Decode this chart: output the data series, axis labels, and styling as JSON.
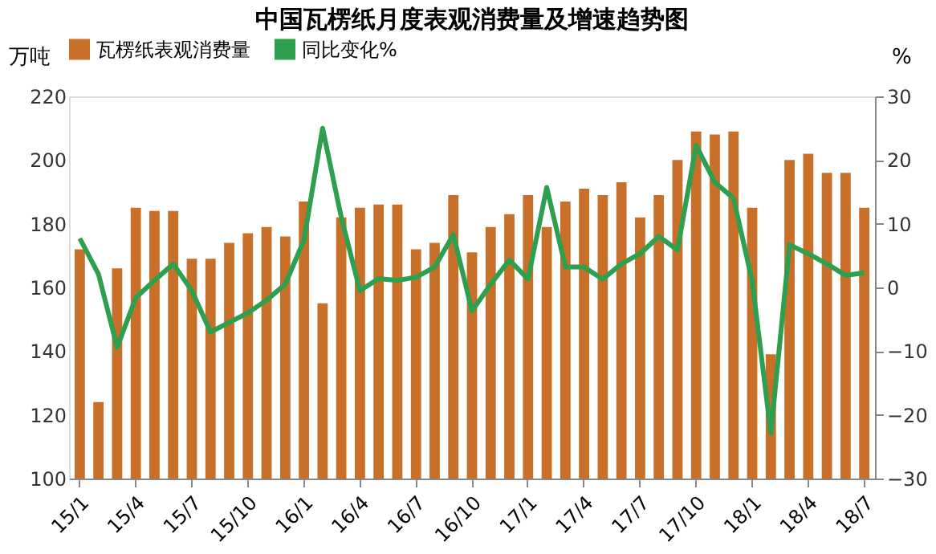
{
  "chart_data": {
    "type": "bar",
    "title": "中国瓦楞纸月度表观消费量及增速趋势图",
    "categories": [
      "15/1",
      null,
      null,
      "15/4",
      null,
      null,
      "15/7",
      null,
      null,
      "15/10",
      null,
      null,
      "16/1",
      null,
      null,
      "16/4",
      null,
      null,
      "16/7",
      null,
      null,
      "16/10",
      null,
      null,
      "17/1",
      null,
      null,
      "17/4",
      null,
      null,
      "17/7",
      null,
      null,
      "17/10",
      null,
      null,
      "18/1",
      null,
      null,
      "18/4",
      null,
      null,
      "18/7"
    ],
    "series": [
      {
        "name": "瓦楞纸表观消费量",
        "color": "#c8702a",
        "values": [
          172,
          124,
          166,
          185,
          184,
          184,
          169,
          169,
          174,
          177,
          179,
          176,
          187,
          155,
          182,
          185,
          186,
          186,
          172,
          174,
          189,
          171,
          179,
          183,
          189,
          179,
          187,
          191,
          189,
          193,
          182,
          189,
          200,
          209,
          208,
          209,
          185,
          139,
          200,
          202,
          196,
          196,
          185
        ]
      },
      {
        "name": "同比变化%",
        "type": "line",
        "axis": "y2",
        "color": "#2e9e4f",
        "values": [
          7.7,
          2.1,
          -9.4,
          -1.6,
          1.1,
          3.7,
          -0.5,
          -7,
          -5.5,
          -4,
          -2,
          0.5,
          7.4,
          25,
          11,
          -0.5,
          1.4,
          1.1,
          1.6,
          3.2,
          8.3,
          -3.7,
          0.5,
          4.3,
          1.3,
          15.7,
          3.2,
          3.2,
          1.3,
          3.7,
          5.3,
          8,
          5.9,
          22.3,
          16.5,
          14,
          1,
          -22.9,
          6.7,
          5.3,
          3.7,
          1.9,
          2.3
        ]
      }
    ],
    "ylabel": "万吨",
    "y2label": "%",
    "ylim": [
      100,
      220
    ],
    "yticks": [
      100,
      120,
      140,
      160,
      180,
      200,
      220
    ],
    "y2lim": [
      -30,
      30
    ],
    "y2ticks": [
      -30,
      -20,
      -10,
      0,
      10,
      20,
      30
    ],
    "legend": "top",
    "grid": false
  }
}
